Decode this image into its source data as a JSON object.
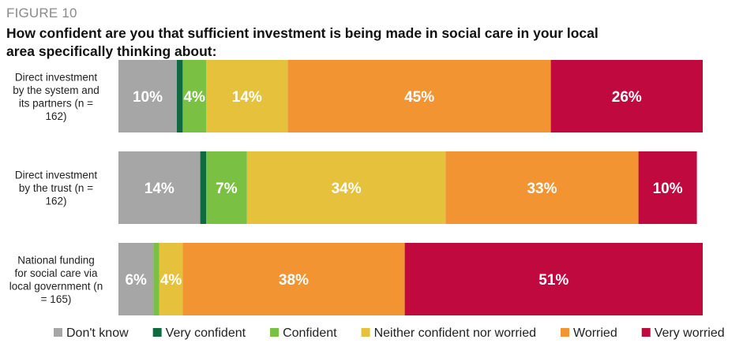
{
  "figure_label": "FIGURE 10",
  "chart_data": {
    "type": "bar",
    "orientation": "horizontal",
    "stacked": true,
    "normalized_percent": true,
    "title": "How confident are you that sufficient investment is being made in social care in your local area specifically thinking about:",
    "xlim": [
      0,
      100
    ],
    "categories": [
      [
        "Direct investment",
        "by the system and",
        "its partners (n =",
        "162)"
      ],
      [
        "Direct investment",
        "by the trust (n =",
        "162)"
      ],
      [
        "National funding",
        "for social care via",
        "local government (n",
        "= 165)"
      ]
    ],
    "series": [
      {
        "name": "Don't know",
        "color": "#a6a6a6",
        "values": [
          10,
          14,
          6
        ],
        "labels": [
          "10%",
          "14%",
          "6%"
        ]
      },
      {
        "name": "Very confident",
        "color": "#0f6b3f",
        "values": [
          1,
          1,
          0
        ],
        "labels": [
          "",
          "",
          ""
        ]
      },
      {
        "name": "Confident",
        "color": "#7ac143",
        "values": [
          4,
          7,
          1
        ],
        "labels": [
          "4%",
          "7%",
          ""
        ]
      },
      {
        "name": "Neither confident nor worried",
        "color": "#e5c13c",
        "values": [
          14,
          34,
          4
        ],
        "labels": [
          "14%",
          "34%",
          "4%"
        ]
      },
      {
        "name": "Worried",
        "color": "#f39433",
        "values": [
          45,
          33,
          38
        ],
        "labels": [
          "45%",
          "33%",
          "38%"
        ]
      },
      {
        "name": "Very worried",
        "color": "#c0093f",
        "values": [
          26,
          10,
          51
        ],
        "labels": [
          "26%",
          "10%",
          "51%"
        ]
      }
    ],
    "legend_position": "bottom",
    "grid": false
  }
}
